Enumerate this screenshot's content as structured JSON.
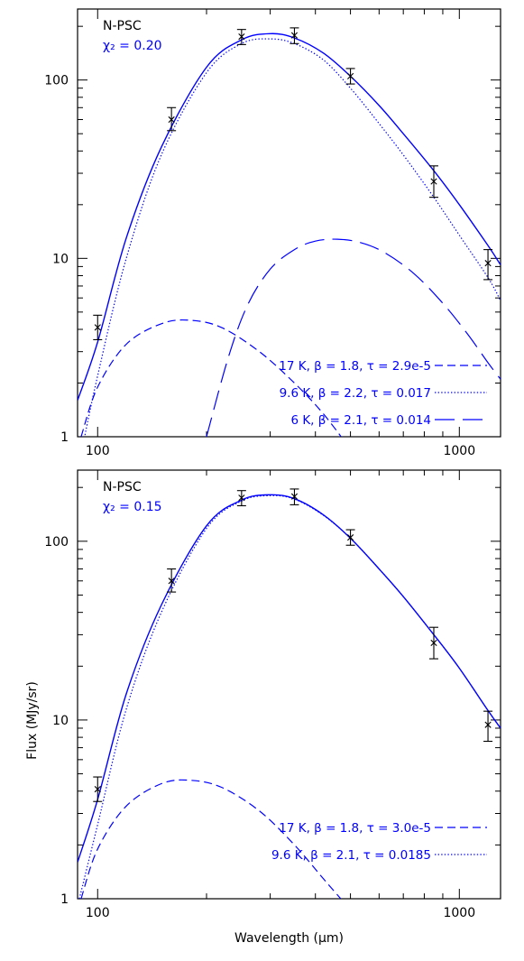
{
  "chart_data": [
    {
      "type": "line",
      "title": "N-PSC",
      "fit_label": "χ₂ = 0.20",
      "xlabel": "",
      "ylabel": "",
      "xscale": "log",
      "yscale": "log",
      "xlim": [
        88,
        1300
      ],
      "ylim": [
        1,
        250
      ],
      "xticks": [
        100,
        1000
      ],
      "xtick_labels": [
        "100",
        "1000"
      ],
      "yticks": [
        1,
        10,
        100
      ],
      "ytick_labels": [
        "1",
        "10",
        "100"
      ],
      "observations": {
        "x": [
          100,
          160,
          250,
          350,
          500,
          850,
          1200
        ],
        "y": [
          4.1,
          60,
          175,
          178,
          105,
          27,
          9.4
        ],
        "err_low": [
          3.5,
          52,
          158,
          160,
          95,
          22,
          7.6
        ],
        "err_high": [
          4.8,
          70,
          192,
          196,
          116,
          33,
          11.2
        ]
      },
      "series": [
        {
          "name": "17 K, β = 1.8, τ = 2.9e-5",
          "line_style": "dashed",
          "color": "#0000ff",
          "x": [
            90,
            100,
            120,
            150,
            180,
            220,
            280,
            350,
            420,
            500
          ],
          "y": [
            1.0,
            1.9,
            3.3,
            4.3,
            4.5,
            4.1,
            3.0,
            2.0,
            1.35,
            0.85
          ]
        },
        {
          "name": "9.6 K, β = 2.2, τ = 0.017",
          "line_style": "dotted",
          "color": "#0000ff",
          "x": [
            90,
            100,
            120,
            150,
            200,
            250,
            300,
            350,
            420,
            500,
            600,
            700,
            850,
            1000,
            1200,
            1300
          ],
          "y": [
            0.8,
            2.2,
            10,
            38,
            110,
            160,
            170,
            160,
            130,
            90,
            57,
            38,
            22,
            13.5,
            7.8,
            5.8
          ]
        },
        {
          "name": "6 K, β = 2.1, τ = 0.014",
          "line_style": "long-dashed",
          "color": "#0000ff",
          "x": [
            200,
            230,
            260,
            300,
            350,
            400,
            460,
            530,
            620,
            750,
            900,
            1050,
            1200,
            1300
          ],
          "y": [
            1.0,
            2.8,
            5.5,
            8.7,
            11.2,
            12.5,
            12.8,
            12.3,
            10.8,
            8.2,
            5.6,
            3.8,
            2.6,
            2.1
          ]
        },
        {
          "name": "",
          "line_style": "solid",
          "color": "#0000ff",
          "x": [
            88,
            100,
            120,
            150,
            200,
            250,
            300,
            350,
            420,
            500,
            600,
            700,
            850,
            1000,
            1200,
            1300
          ],
          "y": [
            1.6,
            3.4,
            13,
            42,
            118,
            168,
            182,
            172,
            142,
            105,
            72,
            50,
            31,
            20,
            11.8,
            9.2
          ]
        }
      ]
    },
    {
      "type": "line",
      "title": "N-PSC",
      "fit_label": "χ₂ = 0.15",
      "xlabel": "Wavelength (μm)",
      "ylabel": "Flux (MJy/sr)",
      "xscale": "log",
      "yscale": "log",
      "xlim": [
        88,
        1300
      ],
      "ylim": [
        1,
        250
      ],
      "xticks": [
        100,
        1000
      ],
      "xtick_labels": [
        "100",
        "1000"
      ],
      "yticks": [
        1,
        10,
        100
      ],
      "ytick_labels": [
        "1",
        "10",
        "100"
      ],
      "observations": {
        "x": [
          100,
          160,
          250,
          350,
          500,
          850,
          1200
        ],
        "y": [
          4.1,
          60,
          175,
          178,
          105,
          27,
          9.4
        ],
        "err_low": [
          3.5,
          52,
          158,
          160,
          95,
          22,
          7.6
        ],
        "err_high": [
          4.8,
          70,
          192,
          196,
          116,
          33,
          11.2
        ]
      },
      "series": [
        {
          "name": "17 K, β = 1.8, τ = 3.0e-5",
          "line_style": "dashed",
          "color": "#0000ff",
          "x": [
            90,
            100,
            120,
            150,
            180,
            220,
            280,
            350,
            420,
            470
          ],
          "y": [
            1.0,
            1.9,
            3.3,
            4.4,
            4.6,
            4.2,
            3.1,
            2.0,
            1.3,
            1.0
          ]
        },
        {
          "name": "9.6 K, β = 2.1, τ = 0.0185",
          "line_style": "dotted",
          "color": "#0000ff",
          "x": [
            89,
            100,
            120,
            150,
            200,
            250,
            300,
            350,
            420,
            500,
            600,
            700,
            850,
            1000,
            1200,
            1300
          ],
          "y": [
            1.0,
            2.6,
            11.5,
            40,
            118,
            168,
            180,
            172,
            140,
            104,
            70,
            49,
            30,
            19.5,
            11.3,
            9.0
          ]
        },
        {
          "name": "",
          "line_style": "solid",
          "color": "#0000ff",
          "x": [
            88,
            100,
            120,
            150,
            200,
            250,
            300,
            350,
            420,
            500,
            600,
            700,
            850,
            1000,
            1200,
            1300
          ],
          "y": [
            1.6,
            3.6,
            14,
            44,
            122,
            170,
            182,
            173,
            141,
            104,
            70,
            49,
            30,
            19.5,
            11.3,
            9.0
          ]
        }
      ]
    }
  ]
}
